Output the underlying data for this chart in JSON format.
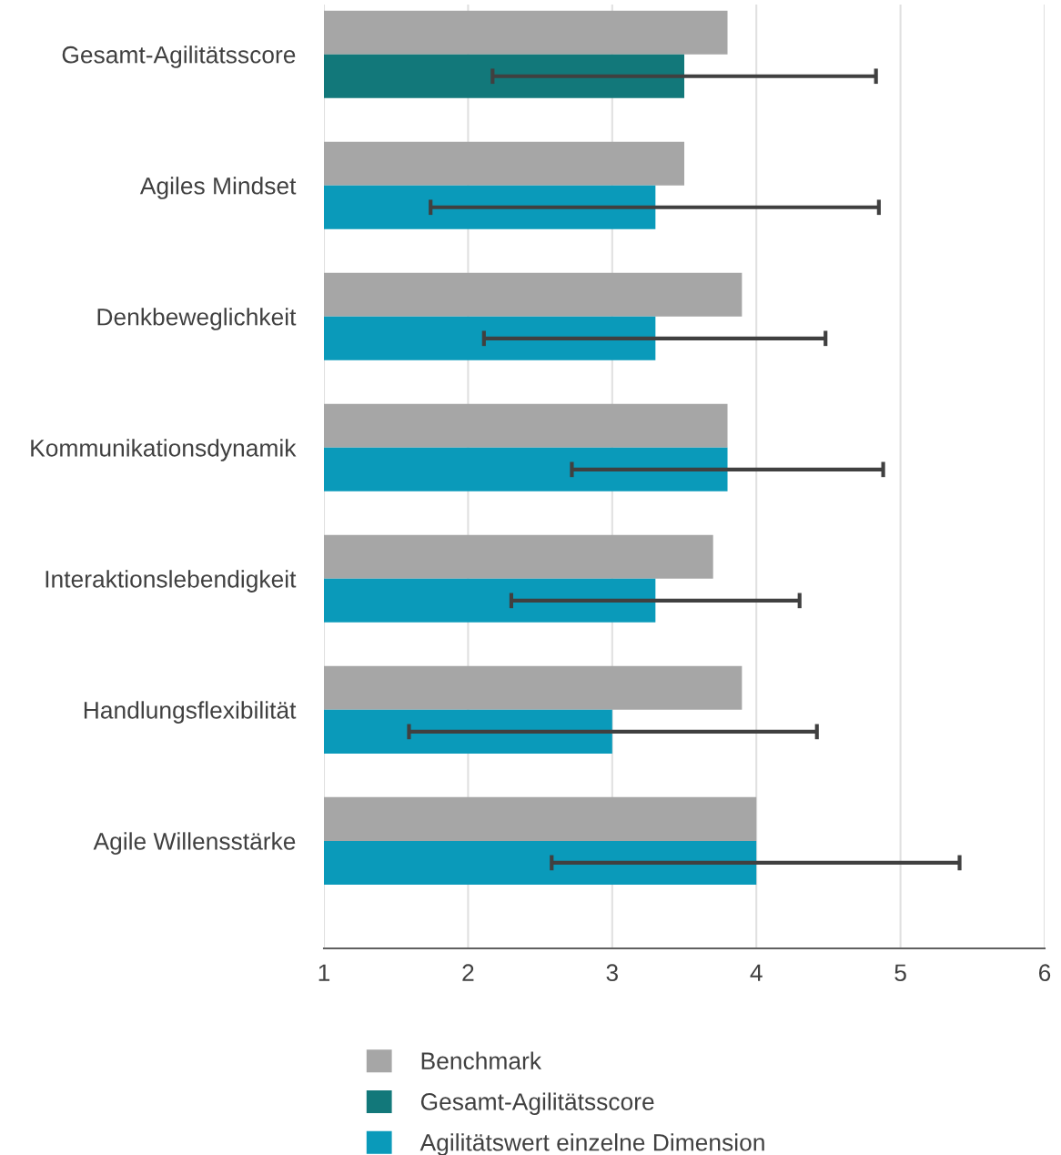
{
  "chart_data": {
    "type": "bar",
    "orientation": "horizontal",
    "categories": [
      "Gesamt-Agilitätsscore",
      "Agiles Mindset",
      "Denkbeweglichkeit",
      "Kommunikationsdynamik",
      "Interaktionslebendigkeit",
      "Handlungsflexibilität",
      "Agile Willensstärke"
    ],
    "series": [
      {
        "name": "Benchmark",
        "color": "#a6a6a6",
        "values": [
          3.8,
          3.5,
          3.9,
          3.8,
          3.7,
          3.9,
          4.0
        ]
      },
      {
        "name": "Gesamt-Agilitätsscore",
        "color": "#12787a",
        "values": [
          3.5,
          null,
          null,
          null,
          null,
          null,
          null
        ],
        "errors": [
          [
            2.17,
            4.83
          ],
          null,
          null,
          null,
          null,
          null,
          null
        ]
      },
      {
        "name": "Agilitätswert einzelne Dimension",
        "color": "#0a9aba",
        "values": [
          null,
          3.3,
          3.3,
          3.8,
          3.3,
          3.0,
          4.0
        ],
        "errors": [
          null,
          [
            1.74,
            4.85
          ],
          [
            2.11,
            4.48
          ],
          [
            2.72,
            4.88
          ],
          [
            2.3,
            4.3
          ],
          [
            1.59,
            4.42
          ],
          [
            2.58,
            5.41
          ]
        ]
      }
    ],
    "xlim": [
      1,
      6
    ],
    "xticks": [
      1,
      2,
      3,
      4,
      5,
      6
    ],
    "grid": "x",
    "legend": "bottom"
  }
}
